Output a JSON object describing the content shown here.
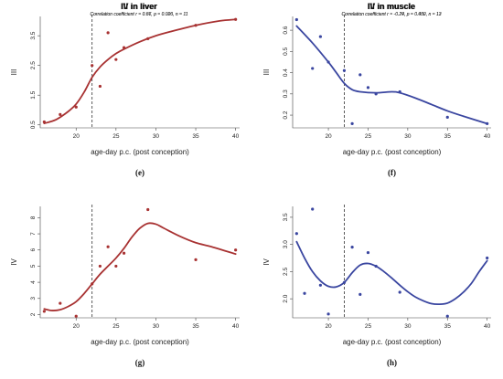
{
  "chart_data": [
    {
      "type": "scatter",
      "title": "III in liver",
      "subtitle": "Correlation coefficient r = 0.87, p = 0.000, n = 11",
      "xlabel": "age-day p.c. (post conception)",
      "ylabel": "III",
      "panel_label": "(e)",
      "xlim": [
        15.5,
        40.5
      ],
      "ylim": [
        0.4,
        4.15
      ],
      "xticks": [
        20,
        25,
        30,
        35,
        40
      ],
      "yticks": [
        0.5,
        1.5,
        2.5,
        3.5
      ],
      "ytick_labels": [
        "0.5",
        "1.5",
        "2.5",
        "3.5"
      ],
      "vline_x": 22,
      "color": "#a83232",
      "points": [
        [
          16,
          0.6
        ],
        [
          18,
          0.85
        ],
        [
          20,
          1.1
        ],
        [
          22,
          2.5
        ],
        [
          23,
          1.8
        ],
        [
          24,
          3.6
        ],
        [
          25,
          2.7
        ],
        [
          26,
          3.1
        ],
        [
          29,
          3.4
        ],
        [
          35,
          3.85
        ],
        [
          40,
          4.05
        ]
      ],
      "curve": [
        [
          16,
          0.55
        ],
        [
          17.5,
          0.68
        ],
        [
          19,
          0.95
        ],
        [
          20,
          1.2
        ],
        [
          21,
          1.6
        ],
        [
          22,
          2.1
        ],
        [
          23,
          2.45
        ],
        [
          24,
          2.7
        ],
        [
          25,
          2.9
        ],
        [
          26,
          3.05
        ],
        [
          28,
          3.3
        ],
        [
          30,
          3.5
        ],
        [
          32,
          3.65
        ],
        [
          35,
          3.85
        ],
        [
          38,
          4.0
        ],
        [
          40,
          4.05
        ]
      ]
    },
    {
      "type": "scatter",
      "title": "III in muscle",
      "subtitle": "Correlation coefficient r = -0.79, p = 0.002, n = 12",
      "xlabel": "age-day p.c. (post conception)",
      "ylabel": "III",
      "panel_label": "(f)",
      "xlim": [
        15.5,
        40.5
      ],
      "ylim": [
        0.14,
        0.665
      ],
      "xticks": [
        20,
        25,
        30,
        35,
        40
      ],
      "yticks": [
        0.2,
        0.3,
        0.4,
        0.5,
        0.6
      ],
      "ytick_labels": [
        "0.2",
        "0.3",
        "0.4",
        "0.5",
        "0.6"
      ],
      "vline_x": 22,
      "color": "#3a46a0",
      "points": [
        [
          16,
          0.65
        ],
        [
          18,
          0.42
        ],
        [
          19,
          0.57
        ],
        [
          20,
          0.45
        ],
        [
          22,
          0.41
        ],
        [
          23,
          0.16
        ],
        [
          24,
          0.39
        ],
        [
          25,
          0.33
        ],
        [
          26,
          0.3
        ],
        [
          29,
          0.31
        ],
        [
          35,
          0.19
        ],
        [
          40,
          0.16
        ]
      ],
      "curve": [
        [
          16,
          0.62
        ],
        [
          18,
          0.54
        ],
        [
          20,
          0.45
        ],
        [
          21,
          0.4
        ],
        [
          22,
          0.35
        ],
        [
          23,
          0.32
        ],
        [
          24,
          0.31
        ],
        [
          26,
          0.305
        ],
        [
          28,
          0.31
        ],
        [
          29,
          0.305
        ],
        [
          31,
          0.28
        ],
        [
          33,
          0.25
        ],
        [
          35,
          0.22
        ],
        [
          37,
          0.195
        ],
        [
          40,
          0.16
        ]
      ]
    },
    {
      "type": "scatter",
      "title": "IV in liver",
      "subtitle": "Correlation coefficient r = 0.66, p = 0.026, n = 11",
      "xlabel": "age-day p.c. (post conception)",
      "ylabel": "IV",
      "panel_label": "(g)",
      "xlim": [
        15.5,
        40.5
      ],
      "ylim": [
        1.8,
        8.7
      ],
      "xticks": [
        20,
        25,
        30,
        35,
        40
      ],
      "yticks": [
        2,
        3,
        4,
        5,
        6,
        7,
        8
      ],
      "ytick_labels": [
        "2",
        "3",
        "4",
        "5",
        "6",
        "7",
        "8"
      ],
      "vline_x": 22,
      "color": "#a83232",
      "points": [
        [
          16,
          2.2
        ],
        [
          18,
          2.7
        ],
        [
          20,
          1.9
        ],
        [
          22,
          3.9
        ],
        [
          23,
          5.0
        ],
        [
          24,
          6.2
        ],
        [
          25,
          5.0
        ],
        [
          26,
          5.8
        ],
        [
          29,
          8.5
        ],
        [
          35,
          5.4
        ],
        [
          40,
          6.0
        ]
      ],
      "curve": [
        [
          16,
          2.35
        ],
        [
          17,
          2.25
        ],
        [
          18,
          2.3
        ],
        [
          19,
          2.5
        ],
        [
          20,
          2.8
        ],
        [
          21,
          3.3
        ],
        [
          22,
          3.9
        ],
        [
          23,
          4.5
        ],
        [
          24,
          5.0
        ],
        [
          25,
          5.5
        ],
        [
          26,
          6.1
        ],
        [
          27,
          6.8
        ],
        [
          28,
          7.35
        ],
        [
          29,
          7.65
        ],
        [
          30,
          7.6
        ],
        [
          31,
          7.35
        ],
        [
          33,
          6.85
        ],
        [
          35,
          6.45
        ],
        [
          37,
          6.2
        ],
        [
          40,
          5.75
        ]
      ]
    },
    {
      "type": "scatter",
      "title": "IV in muscle",
      "subtitle": "Correlation coefficient r = -0.24, p = 0.430, n = 13",
      "xlabel": "age-day p.c. (post conception)",
      "ylabel": "IV",
      "panel_label": "(h)",
      "xlim": [
        15.5,
        40.5
      ],
      "ylim": [
        1.65,
        3.7
      ],
      "xticks": [
        20,
        25,
        30,
        35,
        40
      ],
      "yticks": [
        2.0,
        2.5,
        3.0,
        3.5
      ],
      "ytick_labels": [
        "2.0",
        "2.5",
        "3.0",
        "3.5"
      ],
      "vline_x": 22,
      "color": "#3a46a0",
      "points": [
        [
          16,
          3.2
        ],
        [
          17,
          2.1
        ],
        [
          18,
          3.65
        ],
        [
          19,
          2.25
        ],
        [
          20,
          1.72
        ],
        [
          22,
          2.3
        ],
        [
          23,
          2.95
        ],
        [
          24,
          2.08
        ],
        [
          25,
          2.85
        ],
        [
          26,
          2.6
        ],
        [
          29,
          2.12
        ],
        [
          35,
          1.68
        ],
        [
          40,
          2.75
        ]
      ],
      "curve": [
        [
          16,
          3.05
        ],
        [
          17,
          2.75
        ],
        [
          18,
          2.5
        ],
        [
          19,
          2.33
        ],
        [
          20,
          2.23
        ],
        [
          21,
          2.22
        ],
        [
          22,
          2.3
        ],
        [
          23,
          2.48
        ],
        [
          24,
          2.62
        ],
        [
          25,
          2.65
        ],
        [
          26,
          2.6
        ],
        [
          27,
          2.5
        ],
        [
          28,
          2.38
        ],
        [
          29,
          2.25
        ],
        [
          30,
          2.13
        ],
        [
          31,
          2.03
        ],
        [
          32,
          1.96
        ],
        [
          33,
          1.91
        ],
        [
          34,
          1.9
        ],
        [
          35,
          1.92
        ],
        [
          36,
          2.0
        ],
        [
          37,
          2.12
        ],
        [
          38,
          2.28
        ],
        [
          39,
          2.5
        ],
        [
          40,
          2.7
        ]
      ]
    }
  ]
}
